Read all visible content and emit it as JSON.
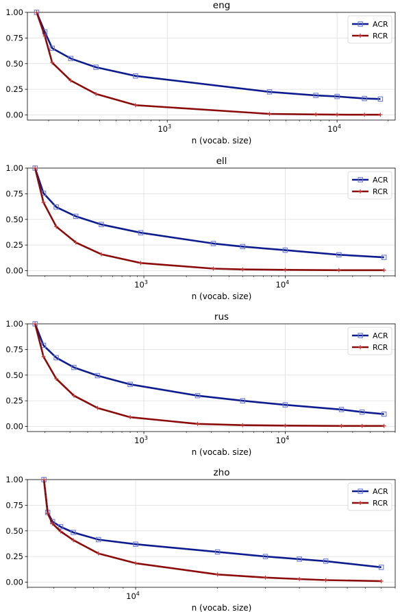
{
  "chart_data": [
    {
      "type": "line",
      "title": "eng",
      "xlabel": "n (vocab. size)",
      "ylabel": "",
      "xscale": "log",
      "xlim": [
        150,
        22000
      ],
      "ylim": [
        -0.05,
        1.0
      ],
      "yticks": [
        "0.00",
        "0.25",
        "0.50",
        "0.75",
        "1.00"
      ],
      "xtick_labels": [
        {
          "label": "10",
          "exp": "3",
          "value": 1000
        },
        {
          "label": "10",
          "exp": "4",
          "value": 10000
        }
      ],
      "grid": true,
      "legend_position": "top-right",
      "series": [
        {
          "name": "ACR",
          "color": "#0c1b8e",
          "marker": "square",
          "x": [
            170,
            190,
            210,
            270,
            380,
            650,
            4000,
            7500,
            10000,
            14500,
            18000
          ],
          "y": [
            1.0,
            0.81,
            0.65,
            0.55,
            0.465,
            0.38,
            0.225,
            0.19,
            0.18,
            0.16,
            0.155
          ]
        },
        {
          "name": "RCR",
          "color": "#8b0a0a",
          "marker": "plus",
          "x": [
            170,
            190,
            210,
            270,
            380,
            650,
            4000,
            7500,
            10000,
            14500,
            18000
          ],
          "y": [
            1.0,
            0.77,
            0.51,
            0.335,
            0.205,
            0.095,
            0.01,
            0.005,
            0.003,
            0.002,
            0.002
          ]
        }
      ]
    },
    {
      "type": "line",
      "title": "ell",
      "xlabel": "n (vocab. size)",
      "ylabel": "",
      "xscale": "log",
      "xlim": [
        150,
        60000
      ],
      "ylim": [
        -0.05,
        1.0
      ],
      "yticks": [
        "0.00",
        "0.25",
        "0.50",
        "0.75",
        "1.00"
      ],
      "xtick_labels": [
        {
          "label": "10",
          "exp": "3",
          "value": 1000
        },
        {
          "label": "10",
          "exp": "4",
          "value": 10000
        }
      ],
      "grid": true,
      "legend_position": "top-right",
      "series": [
        {
          "name": "ACR",
          "color": "#0c1b8e",
          "marker": "square",
          "x": [
            170,
            195,
            240,
            330,
            500,
            950,
            3100,
            5000,
            10000,
            24000,
            50000
          ],
          "y": [
            1.0,
            0.755,
            0.62,
            0.53,
            0.45,
            0.37,
            0.265,
            0.235,
            0.2,
            0.155,
            0.13
          ]
        },
        {
          "name": "RCR",
          "color": "#8b0a0a",
          "marker": "plus",
          "x": [
            170,
            195,
            240,
            330,
            500,
            950,
            3100,
            5000,
            10000,
            24000,
            50000
          ],
          "y": [
            1.0,
            0.665,
            0.43,
            0.275,
            0.16,
            0.075,
            0.02,
            0.012,
            0.008,
            0.005,
            0.005
          ]
        }
      ]
    },
    {
      "type": "line",
      "title": "rus",
      "xlabel": "n (vocab. size)",
      "ylabel": "",
      "xscale": "log",
      "xlim": [
        150,
        60000
      ],
      "ylim": [
        -0.05,
        1.0
      ],
      "yticks": [
        "0.00",
        "0.25",
        "0.50",
        "0.75",
        "1.00"
      ],
      "xtick_labels": [
        {
          "label": "10",
          "exp": "3",
          "value": 1000
        },
        {
          "label": "10",
          "exp": "4",
          "value": 10000
        }
      ],
      "grid": true,
      "legend_position": "top-right",
      "series": [
        {
          "name": "ACR",
          "color": "#0c1b8e",
          "marker": "square",
          "x": [
            170,
            195,
            240,
            320,
            470,
            800,
            2400,
            5000,
            10000,
            25000,
            35000,
            50000
          ],
          "y": [
            1.0,
            0.79,
            0.67,
            0.575,
            0.495,
            0.41,
            0.3,
            0.25,
            0.21,
            0.165,
            0.14,
            0.12
          ]
        },
        {
          "name": "RCR",
          "color": "#8b0a0a",
          "marker": "plus",
          "x": [
            170,
            195,
            240,
            320,
            470,
            800,
            2400,
            5000,
            10000,
            25000,
            35000,
            50000
          ],
          "y": [
            1.0,
            0.68,
            0.465,
            0.3,
            0.18,
            0.09,
            0.025,
            0.012,
            0.008,
            0.005,
            0.005,
            0.005
          ]
        }
      ]
    },
    {
      "type": "line",
      "title": "zho",
      "xlabel": "n (vocab. size)",
      "ylabel": "",
      "xscale": "log",
      "xlim": [
        4000,
        90000
      ],
      "ylim": [
        -0.05,
        1.0
      ],
      "yticks": [
        "0.00",
        "0.25",
        "0.50",
        "0.75",
        "1.00"
      ],
      "xtick_labels": [
        {
          "label": "10",
          "exp": "4",
          "value": 10000
        }
      ],
      "grid": true,
      "legend_position": "top-right",
      "series": [
        {
          "name": "ACR",
          "color": "#0c1b8e",
          "marker": "square",
          "x": [
            4600,
            4750,
            4950,
            5300,
            5900,
            7300,
            10000,
            20000,
            30000,
            40000,
            50000,
            80000
          ],
          "y": [
            1.0,
            0.68,
            0.59,
            0.54,
            0.485,
            0.415,
            0.37,
            0.295,
            0.25,
            0.225,
            0.205,
            0.145
          ]
        },
        {
          "name": "RCR",
          "color": "#8b0a0a",
          "marker": "plus",
          "x": [
            4600,
            4750,
            4950,
            5300,
            5900,
            7300,
            10000,
            20000,
            30000,
            40000,
            50000,
            80000
          ],
          "y": [
            1.0,
            0.67,
            0.57,
            0.495,
            0.41,
            0.28,
            0.185,
            0.075,
            0.045,
            0.03,
            0.02,
            0.01
          ]
        }
      ]
    }
  ]
}
